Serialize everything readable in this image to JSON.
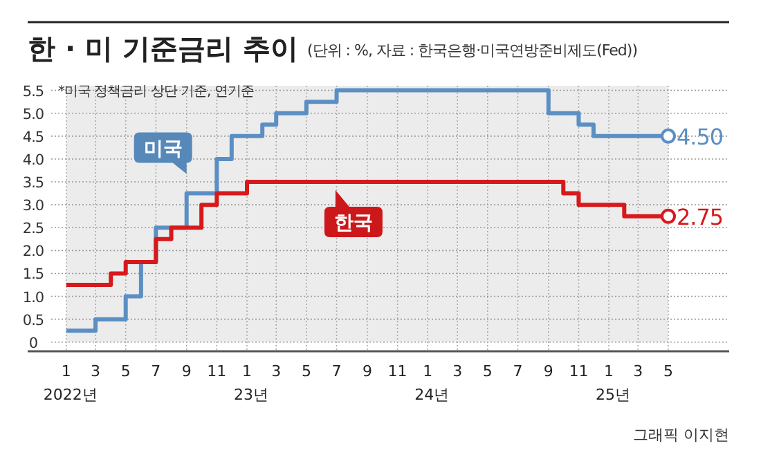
{
  "chart_data": {
    "type": "step",
    "title": "한 · 미 기준금리 추이",
    "subtitle": "(단위 : %, 자료 : 한국은행·미국연방준비제도(Fed))",
    "annotations": [
      "*미국 정책금리 상단 기준, 연기준",
      "그래픽 이지현"
    ],
    "x": [
      "2022-01",
      "2022-02",
      "2022-03",
      "2022-04",
      "2022-05",
      "2022-06",
      "2022-07",
      "2022-08",
      "2022-09",
      "2022-10",
      "2022-11",
      "2022-12",
      "2023-01",
      "2023-02",
      "2023-03",
      "2023-04",
      "2023-05",
      "2023-06",
      "2023-07",
      "2023-08",
      "2023-09",
      "2023-10",
      "2023-11",
      "2023-12",
      "2024-01",
      "2024-02",
      "2024-03",
      "2024-04",
      "2024-05",
      "2024-06",
      "2024-07",
      "2024-08",
      "2024-09",
      "2024-10",
      "2024-11",
      "2024-12",
      "2025-01",
      "2025-02",
      "2025-03",
      "2025-04",
      "2025-05"
    ],
    "xlim": [
      "2021-10-15",
      "2025-09-01"
    ],
    "ylim": [
      -0.2,
      5.6
    ],
    "xticks": [
      {
        "value": "2022-01",
        "label": "1\n2022년"
      },
      {
        "value": "2022-03",
        "label": "3"
      },
      {
        "value": "2022-05",
        "label": "5"
      },
      {
        "value": "2022-07",
        "label": "7"
      },
      {
        "value": "2022-09",
        "label": "9"
      },
      {
        "value": "2022-11",
        "label": "11"
      },
      {
        "value": "2023-01",
        "label": "1\n23년"
      },
      {
        "value": "2023-03",
        "label": "3"
      },
      {
        "value": "2023-05",
        "label": "5"
      },
      {
        "value": "2023-07",
        "label": "7"
      },
      {
        "value": "2023-09",
        "label": "9"
      },
      {
        "value": "2023-11",
        "label": "11"
      },
      {
        "value": "2024-01",
        "label": "1\n24년"
      },
      {
        "value": "2024-03",
        "label": "3"
      },
      {
        "value": "2024-05",
        "label": "5"
      },
      {
        "value": "2024-07",
        "label": "7"
      },
      {
        "value": "2024-09",
        "label": "9"
      },
      {
        "value": "2024-11",
        "label": "11"
      },
      {
        "value": "2025-01",
        "label": "1\n25년"
      },
      {
        "value": "2025-03",
        "label": "3"
      },
      {
        "value": "2025-05",
        "label": "5"
      }
    ],
    "yticks": [
      0,
      {
        "value": 0.5,
        "label": "0.5"
      },
      {
        "value": 1,
        "label": "1.0"
      },
      {
        "value": 1.5,
        "label": "1.5"
      },
      {
        "value": 2,
        "label": "2.0"
      },
      {
        "value": 2.5,
        "label": "2.5"
      },
      {
        "value": 3,
        "label": "3.0"
      },
      {
        "value": 3.5,
        "label": "3.5"
      },
      {
        "value": 4,
        "label": "4.0"
      },
      {
        "value": 4.5,
        "label": "4.5"
      },
      {
        "value": 5,
        "label": "5.0"
      },
      {
        "value": 5.5,
        "label": "5.5"
      }
    ],
    "grid": true,
    "legend": false,
    "bands": [
      {
        "axis": "x",
        "from": "2022-01",
        "to": "2025-05",
        "color": "#ececec"
      }
    ],
    "series": [
      {
        "name": "미국",
        "color": "#5b8fc4",
        "values": [
          0.25,
          0.25,
          0.5,
          0.5,
          1.0,
          1.75,
          2.5,
          2.5,
          3.25,
          3.25,
          4.0,
          4.5,
          4.5,
          4.75,
          5.0,
          5.0,
          5.25,
          5.25,
          5.5,
          5.5,
          5.5,
          5.5,
          5.5,
          5.5,
          5.5,
          5.5,
          5.5,
          5.5,
          5.5,
          5.5,
          5.5,
          5.5,
          5.0,
          5.0,
          4.75,
          4.5,
          4.5,
          4.5,
          4.5,
          4.5,
          4.5
        ],
        "value_labels": [
          null,
          null,
          null,
          null,
          null,
          null,
          null,
          null,
          null,
          null,
          null,
          null,
          null,
          null,
          null,
          null,
          null,
          null,
          null,
          null,
          null,
          null,
          null,
          null,
          null,
          null,
          null,
          null,
          null,
          null,
          null,
          null,
          null,
          null,
          null,
          null,
          null,
          null,
          null,
          null,
          "4.50"
        ]
      },
      {
        "name": "한국",
        "color": "#d7191c",
        "values": [
          1.25,
          1.25,
          1.25,
          1.5,
          1.75,
          1.75,
          2.25,
          2.5,
          2.5,
          3.0,
          3.25,
          3.25,
          3.5,
          3.5,
          3.5,
          3.5,
          3.5,
          3.5,
          3.5,
          3.5,
          3.5,
          3.5,
          3.5,
          3.5,
          3.5,
          3.5,
          3.5,
          3.5,
          3.5,
          3.5,
          3.5,
          3.5,
          3.5,
          3.25,
          3.0,
          3.0,
          3.0,
          2.75,
          2.75,
          2.75,
          2.75
        ],
        "value_labels": [
          null,
          null,
          null,
          null,
          null,
          null,
          null,
          null,
          null,
          null,
          null,
          null,
          null,
          null,
          null,
          null,
          null,
          null,
          null,
          null,
          null,
          null,
          null,
          null,
          null,
          null,
          null,
          null,
          null,
          null,
          null,
          null,
          null,
          null,
          null,
          null,
          null,
          null,
          null,
          null,
          "2.75"
        ]
      }
    ]
  }
}
